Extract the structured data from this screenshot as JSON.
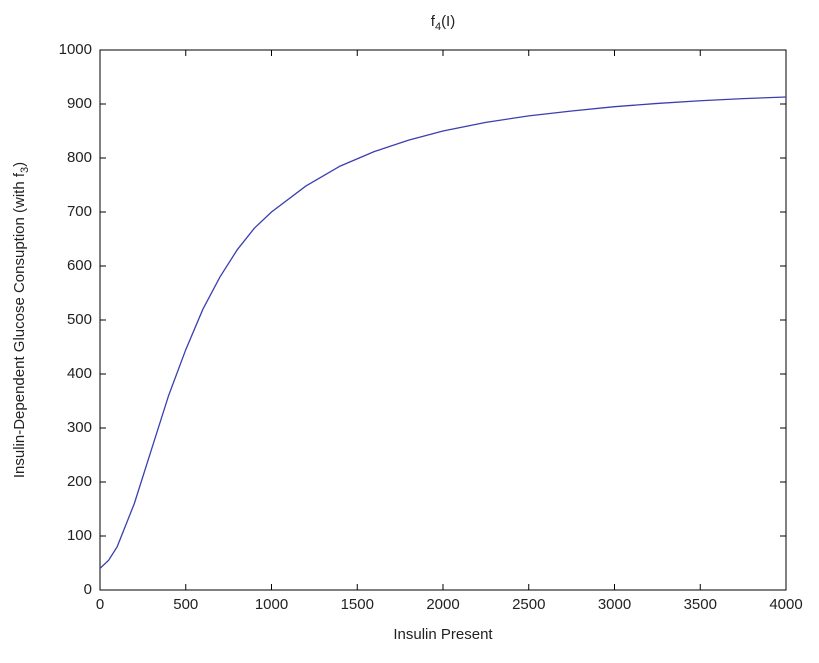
{
  "chart_data": {
    "type": "line",
    "title": {
      "base": "f",
      "sub": "4",
      "rest": "(I)"
    },
    "x_label": "Insulin Present",
    "y_label": {
      "base": "Insulin-Dependent Glucose Consuption (with f",
      "sub": "3",
      "rest": ")"
    },
    "x": [
      0,
      50,
      100,
      200,
      300,
      400,
      500,
      600,
      700,
      800,
      900,
      1000,
      1200,
      1400,
      1600,
      1800,
      2000,
      2250,
      2500,
      2750,
      3000,
      3250,
      3500,
      3750,
      4000
    ],
    "series": [
      {
        "color": "#3a3fb0",
        "values": [
          40,
          55,
          80,
          160,
          260,
          360,
          445,
          520,
          580,
          630,
          670,
          700,
          748,
          785,
          812,
          833,
          850,
          866,
          878,
          887,
          895,
          901,
          906,
          910,
          913
        ]
      }
    ],
    "xlim": [
      0,
      4000
    ],
    "xticks": [
      0,
      500,
      1000,
      1500,
      2000,
      2500,
      3000,
      3500,
      4000
    ],
    "ylim": [
      0,
      1000
    ],
    "yticks": [
      0,
      100,
      200,
      300,
      400,
      500,
      600,
      700,
      800,
      900,
      1000
    ],
    "grid": false
  }
}
